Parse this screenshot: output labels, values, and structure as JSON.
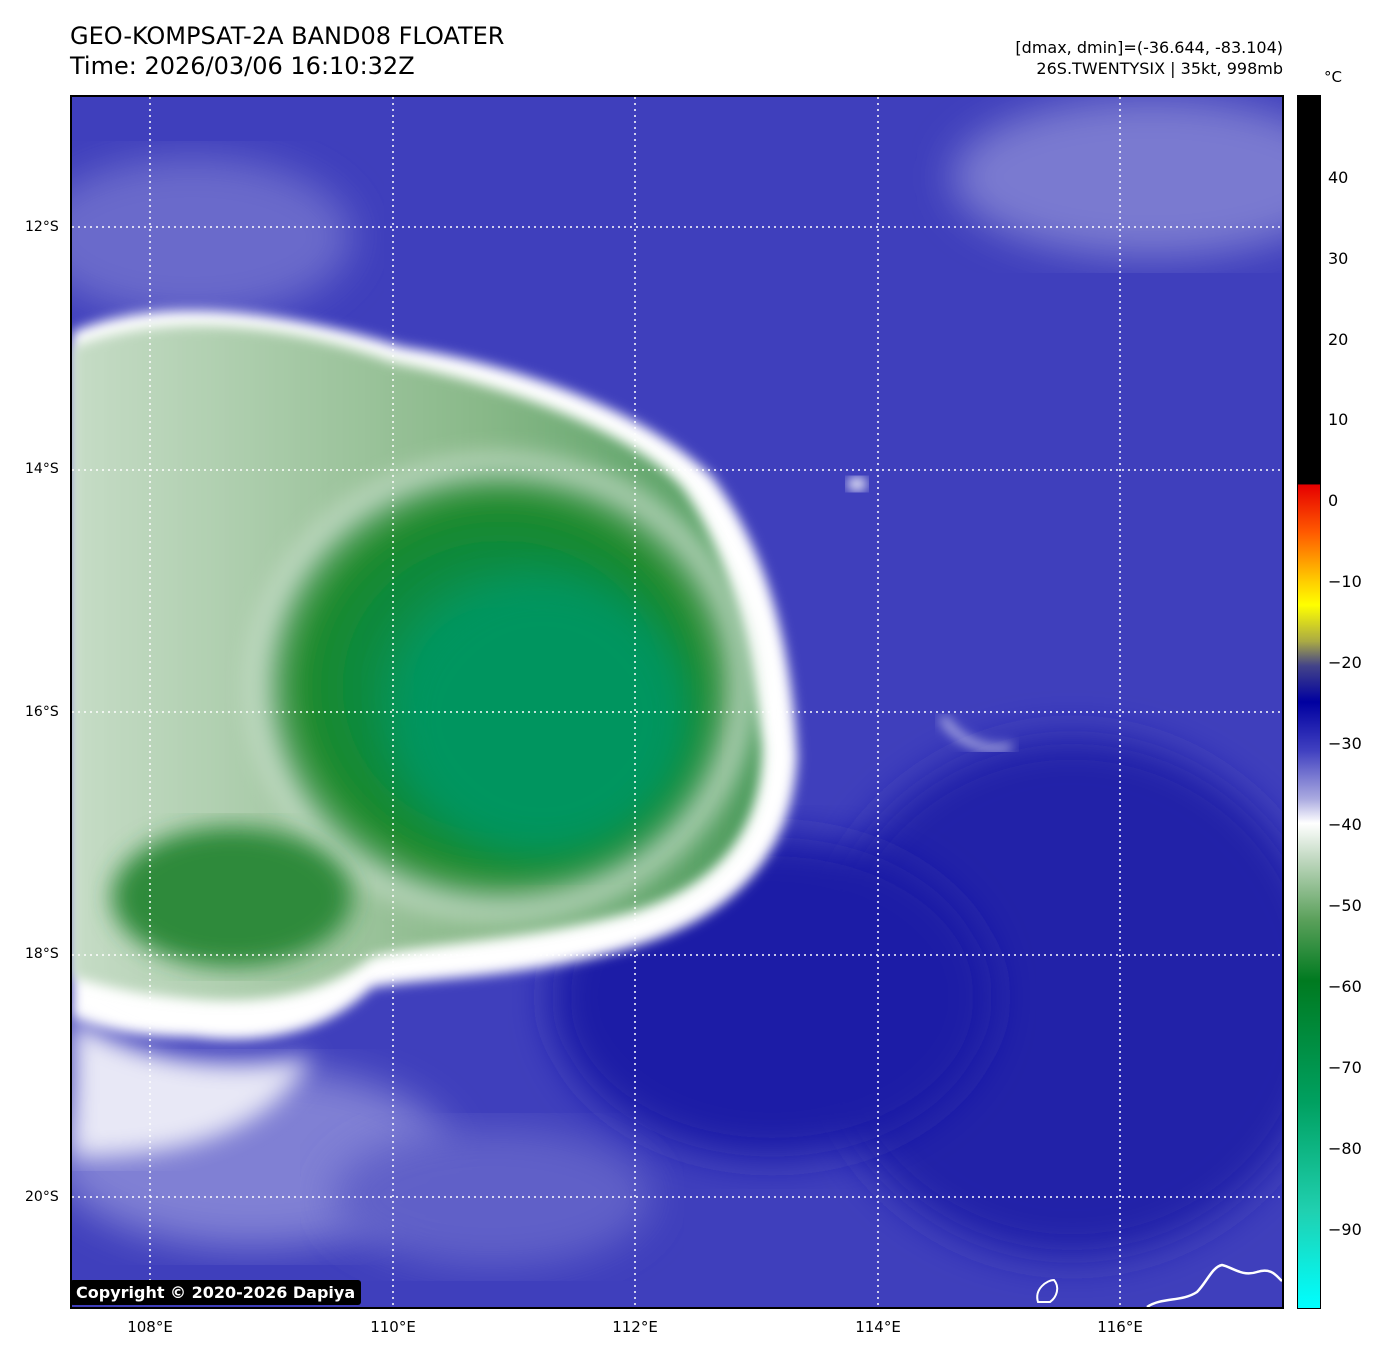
{
  "header": {
    "title": "GEO-KOMPSAT-2A BAND08 FLOATER",
    "time": "Time: 2026/03/06 16:10:32Z",
    "range": "[dmax, dmin]=(-36.644, -83.104)",
    "storm": "26S.TWENTYSIX | 35kt, 998mb"
  },
  "map": {
    "lat_labels": [
      "12°S",
      "14°S",
      "16°S",
      "18°S",
      "20°S"
    ],
    "lon_labels": [
      "108°E",
      "110°E",
      "112°E",
      "114°E",
      "116°E"
    ],
    "copyright": "Copyright © 2020-2026 Dapiya"
  },
  "colorbar": {
    "unit": "°C",
    "ticks": [
      "40",
      "30",
      "20",
      "10",
      "0",
      "−10",
      "−20",
      "−30",
      "−40",
      "−50",
      "−60",
      "−70",
      "−80",
      "−90"
    ]
  },
  "colors": {
    "ocean": "#3a3ab8",
    "cold_core": "#0a8a40",
    "cloud_edge": "#ffffff",
    "grid": "#ffffff"
  }
}
